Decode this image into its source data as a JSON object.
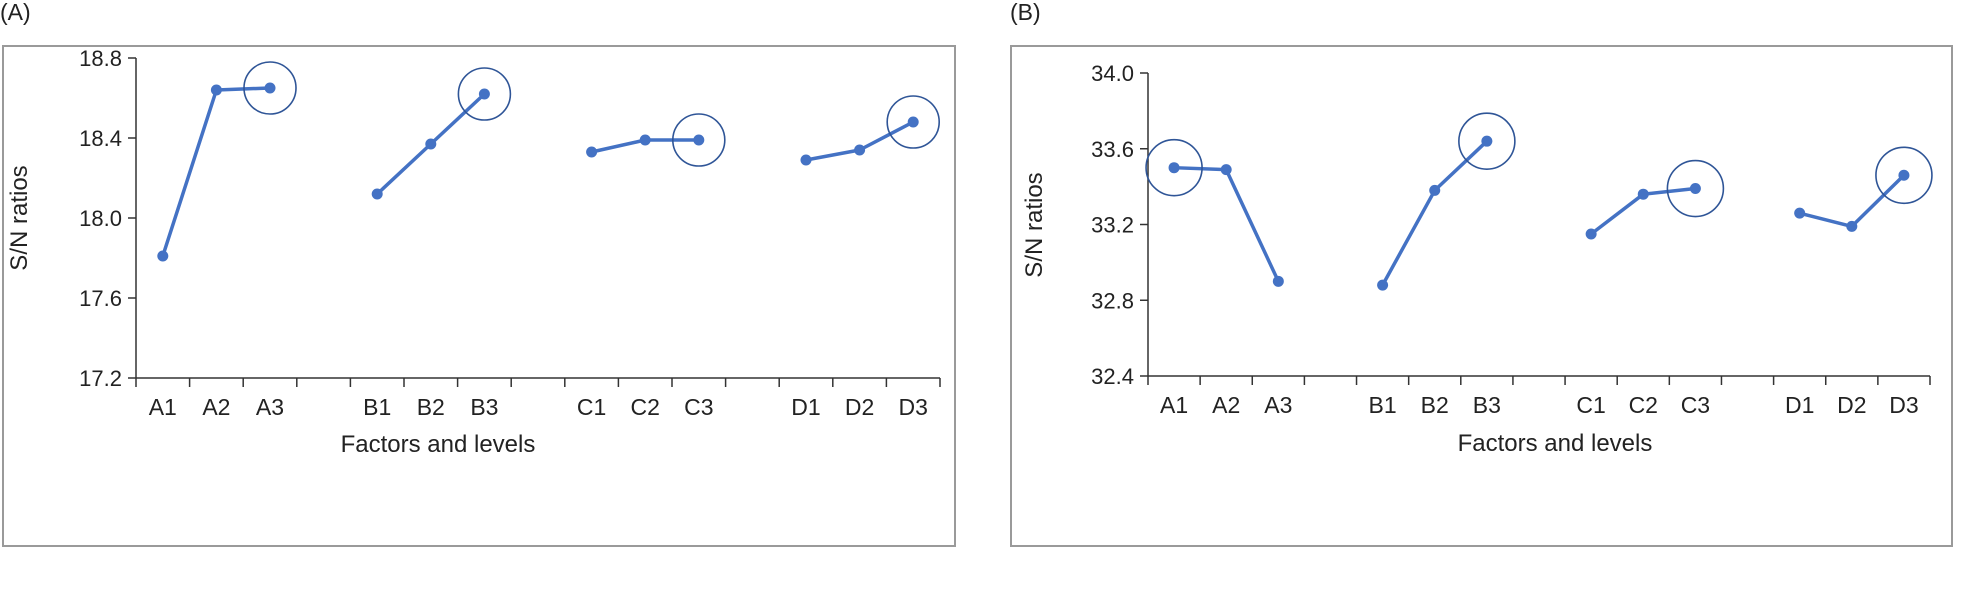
{
  "chart_data": [
    {
      "type": "line",
      "panel_label": "(A)",
      "xlabel": "Factors and levels",
      "ylabel": "S/N ratios",
      "ylim": [
        17.2,
        18.8
      ],
      "yticks": [
        "17.2",
        "17.6",
        "18.0",
        "18.4",
        "18.8"
      ],
      "groups": [
        {
          "categories": [
            "A1",
            "A2",
            "A3"
          ],
          "values": [
            17.81,
            18.64,
            18.65
          ],
          "highlight_index": 2
        },
        {
          "categories": [
            "B1",
            "B2",
            "B3"
          ],
          "values": [
            18.12,
            18.37,
            18.62
          ],
          "highlight_index": 2
        },
        {
          "categories": [
            "C1",
            "C2",
            "C3"
          ],
          "values": [
            18.33,
            18.39,
            18.39
          ],
          "highlight_index": 2
        },
        {
          "categories": [
            "D1",
            "D2",
            "D3"
          ],
          "values": [
            18.29,
            18.34,
            18.48
          ],
          "highlight_index": 2
        }
      ],
      "line_color": "#4472C4",
      "circle_color": "#2F5597"
    },
    {
      "type": "line",
      "panel_label": "(B)",
      "xlabel": "Factors and levels",
      "ylabel": "S/N ratios",
      "ylim": [
        32.4,
        34.0
      ],
      "yticks": [
        "32.4",
        "32.8",
        "33.2",
        "33.6",
        "34.0"
      ],
      "groups": [
        {
          "categories": [
            "A1",
            "A2",
            "A3"
          ],
          "values": [
            33.5,
            33.49,
            32.9
          ],
          "highlight_index": 0
        },
        {
          "categories": [
            "B1",
            "B2",
            "B3"
          ],
          "values": [
            32.88,
            33.38,
            33.64
          ],
          "highlight_index": 2
        },
        {
          "categories": [
            "C1",
            "C2",
            "C3"
          ],
          "values": [
            33.15,
            33.36,
            33.39
          ],
          "highlight_index": 2
        },
        {
          "categories": [
            "D1",
            "D2",
            "D3"
          ],
          "values": [
            33.26,
            33.19,
            33.46
          ],
          "highlight_index": 2
        }
      ],
      "line_color": "#4472C4",
      "circle_color": "#2F5597"
    }
  ]
}
